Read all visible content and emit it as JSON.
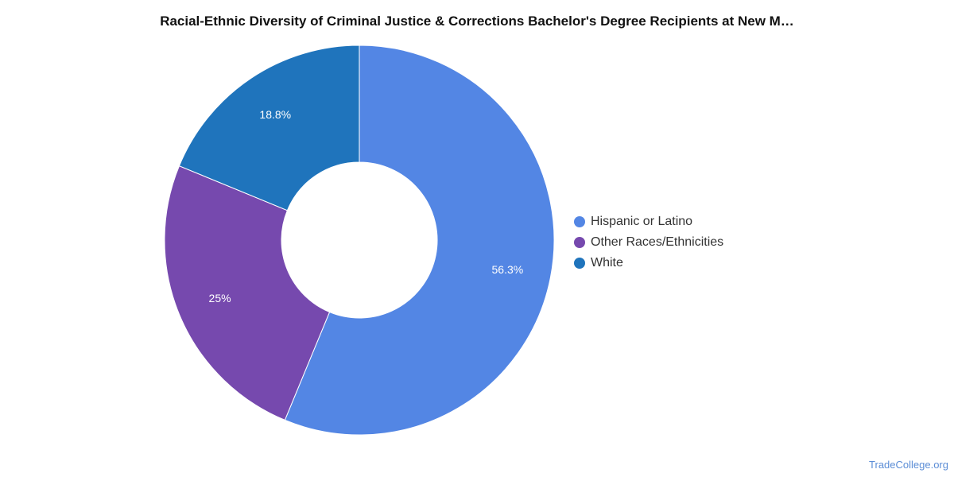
{
  "chart_data": {
    "type": "pie",
    "variant": "donut",
    "title": "Racial-Ethnic Diversity of Criminal Justice & Corrections Bachelor's Degree Recipients at New M…",
    "categories": [
      "Hispanic or Latino",
      "Other Races/Ethnicities",
      "White"
    ],
    "values": [
      56.3,
      25,
      18.8
    ],
    "value_labels": [
      "56.3%",
      "25%",
      "18.8%"
    ],
    "colors": [
      "#5386e4",
      "#7649ae",
      "#1f74bc"
    ],
    "legend_position": "right"
  },
  "watermark": "TradeCollege.org"
}
